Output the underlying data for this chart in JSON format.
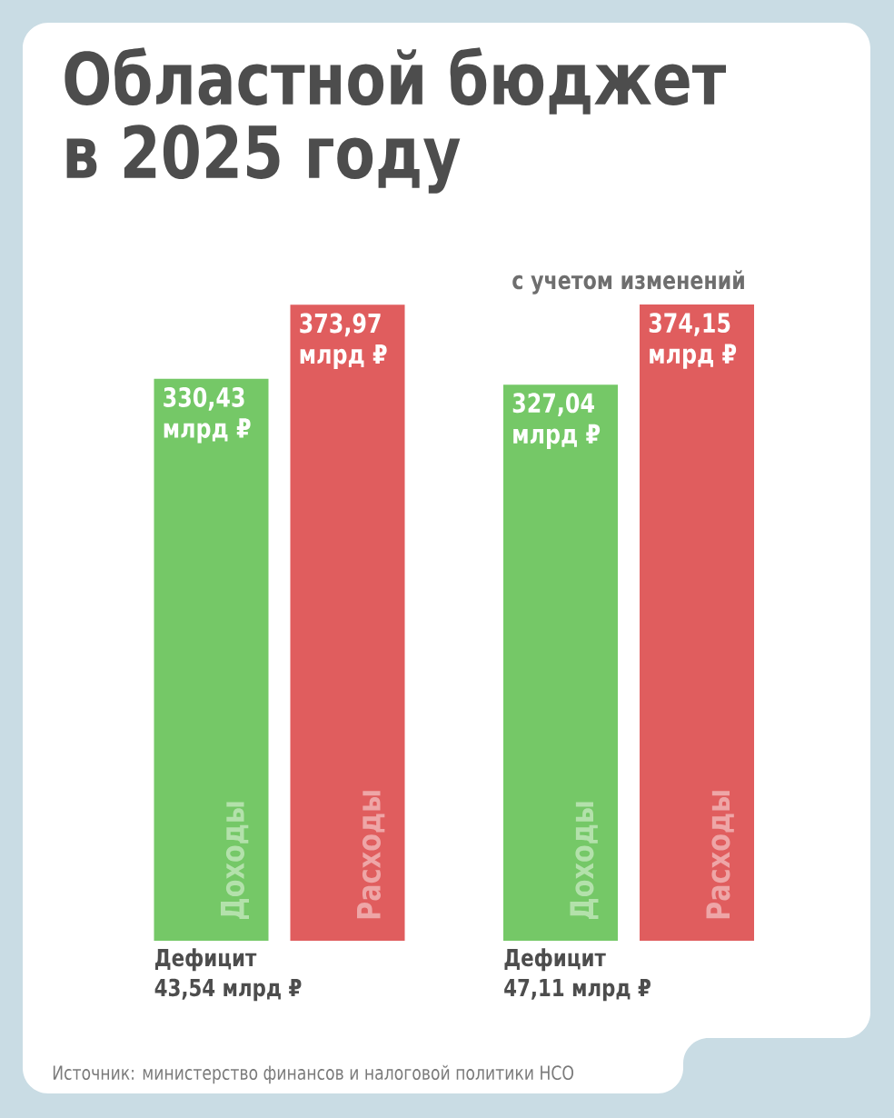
{
  "chart_data": {
    "type": "bar",
    "title": "Областной бюджет в 2025 году",
    "categories": [
      null,
      "с учетом изменений"
    ],
    "series": [
      {
        "name": "Доходы",
        "color": "#75c867",
        "values": [
          330.43,
          327.04
        ],
        "value_labels": [
          "330,43 млрд ₽",
          "327,04 млрд ₽"
        ]
      },
      {
        "name": "Расходы",
        "color": "#e05d5e",
        "values": [
          373.97,
          374.15
        ],
        "value_labels": [
          "373,97 млрд ₽",
          "374,15 млрд ₽"
        ]
      }
    ],
    "annotations": [
      "Дефицит 43,54 млрд ₽",
      "Дефицит 47,11 млрд ₽",
      "Источник: министерство финансов и налоговой политики НСО"
    ]
  }
}
